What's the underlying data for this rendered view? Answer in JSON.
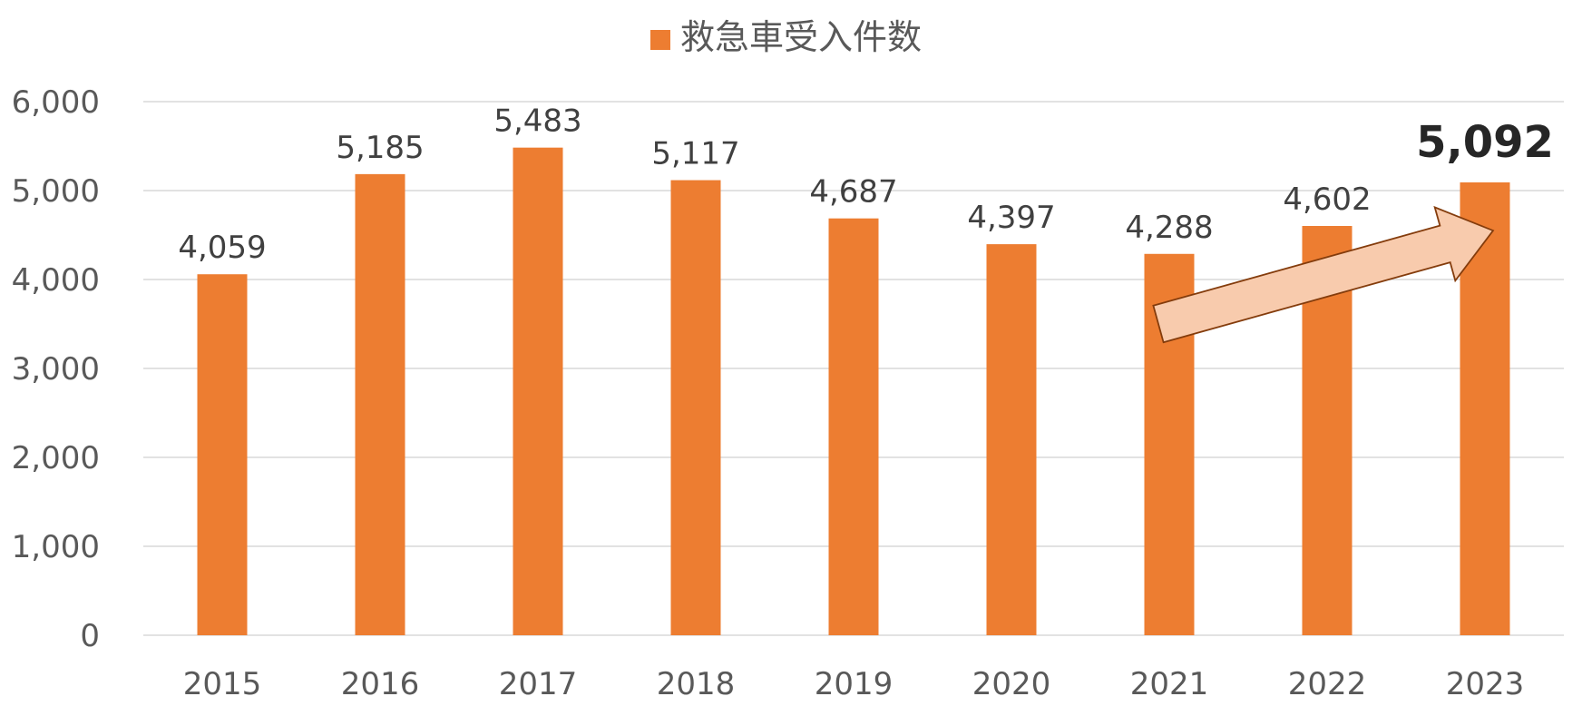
{
  "chart_data": {
    "type": "bar",
    "categories": [
      "2015",
      "2016",
      "2017",
      "2018",
      "2019",
      "2020",
      "2021",
      "2022",
      "2023"
    ],
    "series": [
      {
        "name": "救急車受入件数",
        "values": [
          4059,
          5185,
          5483,
          5117,
          4687,
          4397,
          4288,
          4602,
          5092
        ],
        "labels": [
          "4,059",
          "5,185",
          "5,483",
          "5,117",
          "4,687",
          "4,397",
          "4,288",
          "4,602",
          "5,092"
        ],
        "color": "#ED7D31"
      }
    ],
    "ylim": [
      0,
      6000
    ],
    "yticks": [
      0,
      1000,
      2000,
      3000,
      4000,
      5000,
      6000
    ],
    "ytick_labels": [
      "0",
      "1,000",
      "2,000",
      "3,000",
      "4,000",
      "5,000",
      "6,000"
    ],
    "highlight_index": 8,
    "legend_position": "top-center",
    "grid": true,
    "gridline_color": "#D9D9D9",
    "annotation": {
      "type": "arrow",
      "from_category": "2021",
      "to_category": "2023",
      "fill": "#F8CBAD",
      "stroke": "#843C0C"
    }
  }
}
